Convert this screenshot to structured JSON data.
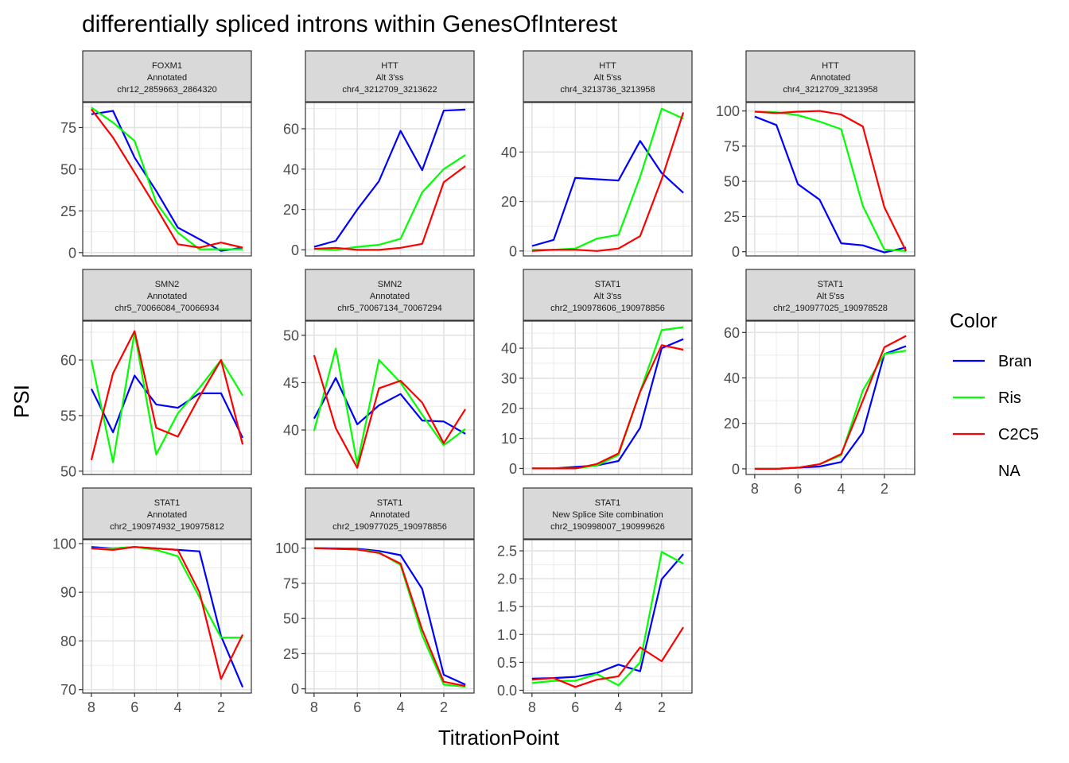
{
  "title": "differentially spliced introns within GenesOfInterest",
  "xlabel": "TitrationPoint",
  "ylabel": "PSI",
  "legend": {
    "title": "Color",
    "entries": [
      {
        "name": "Bran",
        "color": "#0000FF"
      },
      {
        "name": "Ris",
        "color": "#00FF00"
      },
      {
        "name": "C2C5",
        "color": "#FF0000"
      },
      {
        "name": "NA",
        "color": ""
      }
    ]
  },
  "chart_data": {
    "type": "line",
    "x_axis": {
      "range": [
        8.4,
        0.6
      ],
      "ticks": [
        8,
        6,
        4,
        2
      ],
      "tick_labels": [
        "8",
        "6",
        "4",
        "2"
      ],
      "reversed": true
    },
    "x": [
      8,
      7,
      6,
      5,
      4,
      3,
      2,
      1
    ],
    "panels": [
      {
        "strip": [
          "FOXM1",
          "Annotated",
          "chr12_2859663_2864320"
        ],
        "ylim": [
          -2,
          90
        ],
        "yticks": [
          0,
          25,
          50,
          75
        ],
        "ytick_labels": [
          "0",
          "25",
          "50",
          "75"
        ],
        "series": [
          {
            "name": "Bran",
            "values": [
              83,
              85,
              57,
              37,
              15,
              8,
              1,
              3
            ]
          },
          {
            "name": "Ris",
            "values": [
              87,
              78,
              67,
              30,
              12,
              2,
              2,
              2
            ]
          },
          {
            "name": "C2C5",
            "values": [
              86,
              69,
              48,
              27,
              5,
              3,
              6,
              3
            ]
          }
        ]
      },
      {
        "strip": [
          "HTT",
          "Alt 3'ss",
          "chr4_3212709_3213622"
        ],
        "ylim": [
          -3,
          73
        ],
        "yticks": [
          0,
          20,
          40,
          60
        ],
        "ytick_labels": [
          "0",
          "20",
          "40",
          "60"
        ],
        "series": [
          {
            "name": "Bran",
            "values": [
              1.5,
              4.5,
              20,
              34,
              59,
              39.5,
              69,
              69.5
            ]
          },
          {
            "name": "Ris",
            "values": [
              0.5,
              0,
              1.5,
              2.5,
              5.5,
              28.5,
              40,
              47
            ]
          },
          {
            "name": "C2C5",
            "values": [
              0.5,
              1,
              0,
              0,
              1,
              3,
              33.5,
              41.5
            ]
          }
        ]
      },
      {
        "strip": [
          "HTT",
          "Alt 5'ss",
          "chr4_3213736_3213958"
        ],
        "ylim": [
          -2,
          60
        ],
        "yticks": [
          0,
          20,
          40
        ],
        "ytick_labels": [
          "0",
          "20",
          "40"
        ],
        "series": [
          {
            "name": "Bran",
            "values": [
              2,
              4.5,
              29.5,
              29,
              28.5,
              44.5,
              31.5,
              23.5
            ]
          },
          {
            "name": "Ris",
            "values": [
              0.5,
              0.5,
              1,
              5,
              6.5,
              30,
              57.5,
              53.5
            ]
          },
          {
            "name": "C2C5",
            "values": [
              0,
              0.5,
              0.5,
              0,
              1,
              6,
              29,
              56
            ]
          }
        ]
      },
      {
        "strip": [
          "HTT",
          "Annotated",
          "chr4_3212709_3213958"
        ],
        "ylim": [
          -3,
          106
        ],
        "yticks": [
          0,
          25,
          50,
          75,
          100
        ],
        "ytick_labels": [
          "0",
          "25",
          "50",
          "75",
          "100"
        ],
        "series": [
          {
            "name": "Bran",
            "values": [
              96,
              90,
              48,
              37,
              6,
              4.5,
              -0.5,
              3
            ]
          },
          {
            "name": "Ris",
            "values": [
              99.5,
              99,
              97,
              92.5,
              87,
              32.5,
              1.5,
              0.5
            ]
          },
          {
            "name": "C2C5",
            "values": [
              99.5,
              98.5,
              99.5,
              100,
              97.5,
              89,
              31.5,
              0.5
            ]
          }
        ]
      },
      {
        "strip": [
          "SMN2",
          "Annotated",
          "chr5_70066084_70066934"
        ],
        "ylim": [
          49.7,
          63.5
        ],
        "yticks": [
          50,
          55,
          60
        ],
        "ytick_labels": [
          "50",
          "55",
          "60"
        ],
        "series": [
          {
            "name": "Bran",
            "values": [
              57.4,
              53.5,
              58.6,
              56.0,
              55.7,
              57.0,
              57.0,
              53.0
            ]
          },
          {
            "name": "Ris",
            "values": [
              60.0,
              50.8,
              62.5,
              51.5,
              55.2,
              57.5,
              60.0,
              56.8
            ]
          },
          {
            "name": "C2C5",
            "values": [
              51.0,
              58.8,
              62.6,
              53.9,
              53.1,
              56.7,
              60.0,
              52.4
            ]
          }
        ]
      },
      {
        "strip": [
          "SMN2",
          "Annotated",
          "chr5_70067134_70067294"
        ],
        "ylim": [
          35.3,
          51.5
        ],
        "yticks": [
          40,
          45,
          50
        ],
        "ytick_labels": [
          "40",
          "45",
          "50"
        ],
        "series": [
          {
            "name": "Bran",
            "values": [
              41.2,
              45.5,
              40.6,
              42.6,
              43.8,
              41.0,
              40.9,
              39.6
            ]
          },
          {
            "name": "Ris",
            "values": [
              39.9,
              48.6,
              36.4,
              47.4,
              45.0,
              41.6,
              38.4,
              40.1
            ]
          },
          {
            "name": "C2C5",
            "values": [
              47.9,
              40.2,
              36.0,
              44.4,
              45.2,
              42.9,
              38.6,
              42.2
            ]
          }
        ]
      },
      {
        "strip": [
          "STAT1",
          "Alt 3'ss",
          "chr2_190978606_190978856"
        ],
        "ylim": [
          -2,
          49
        ],
        "yticks": [
          0,
          10,
          20,
          30,
          40
        ],
        "ytick_labels": [
          "0",
          "10",
          "20",
          "30",
          "40"
        ],
        "series": [
          {
            "name": "Bran",
            "values": [
              0,
              0,
              0.5,
              1,
              2.5,
              13.5,
              40,
              43
            ]
          },
          {
            "name": "Ris",
            "values": [
              0,
              0,
              0,
              1,
              4.5,
              25.5,
              46,
              47
            ]
          },
          {
            "name": "C2C5",
            "values": [
              0,
              0,
              0,
              1.5,
              5,
              25.5,
              41,
              39.5
            ]
          }
        ]
      },
      {
        "strip": [
          "STAT1",
          "Alt 5'ss",
          "chr2_190977025_190978528"
        ],
        "ylim": [
          -2.5,
          65
        ],
        "yticks": [
          0,
          20,
          40,
          60
        ],
        "ytick_labels": [
          "0",
          "20",
          "40",
          "60"
        ],
        "series": [
          {
            "name": "Bran",
            "values": [
              0,
              0,
              0.5,
              1,
              3,
              16,
              50.5,
              54
            ]
          },
          {
            "name": "Ris",
            "values": [
              0,
              0,
              0.5,
              2,
              6,
              34.5,
              50.5,
              52
            ]
          },
          {
            "name": "C2C5",
            "values": [
              0,
              0,
              0.5,
              2,
              6.5,
              30,
              53.5,
              58.5
            ]
          }
        ]
      },
      {
        "strip": [
          "STAT1",
          "Annotated",
          "chr2_190974932_190975812"
        ],
        "ylim": [
          69.3,
          100.8
        ],
        "yticks": [
          70,
          80,
          90,
          100
        ],
        "ytick_labels": [
          "70",
          "80",
          "90",
          "100"
        ],
        "series": [
          {
            "name": "Bran",
            "values": [
              99.3,
              99.0,
              99.3,
              99.0,
              98.7,
              98.4,
              81.0,
              70.5
            ]
          },
          {
            "name": "Ris",
            "values": [
              99.0,
              99.0,
              99.3,
              98.7,
              97.4,
              89.0,
              80.7,
              80.7
            ]
          },
          {
            "name": "C2C5",
            "values": [
              99.0,
              98.7,
              99.3,
              99.0,
              98.7,
              90.0,
              72.2,
              81.3
            ]
          }
        ]
      },
      {
        "strip": [
          "STAT1",
          "Annotated",
          "chr2_190977025_190978856"
        ],
        "ylim": [
          -3,
          106
        ],
        "yticks": [
          0,
          25,
          50,
          75,
          100
        ],
        "ytick_labels": [
          "0",
          "25",
          "50",
          "75",
          "100"
        ],
        "series": [
          {
            "name": "Bran",
            "values": [
              100,
              99.8,
              99.5,
              98,
              95,
              71,
              10,
              3
            ]
          },
          {
            "name": "Ris",
            "values": [
              100,
              99.5,
              99,
              97,
              88,
              38,
              3,
              1.5
            ]
          },
          {
            "name": "C2C5",
            "values": [
              100,
              99.5,
              99,
              96.5,
              89,
              42,
              5,
              2
            ]
          }
        ]
      },
      {
        "strip": [
          "STAT1",
          "New Splice Site combination",
          "chr2_190998007_190999626"
        ],
        "ylim": [
          -0.05,
          2.7
        ],
        "yticks": [
          0,
          0.5,
          1,
          1.5,
          2,
          2.5
        ],
        "ytick_labels": [
          "0.0",
          "0.5",
          "1.0",
          "1.5",
          "2.0",
          "2.5"
        ],
        "series": [
          {
            "name": "Bran",
            "values": [
              0.21,
              0.22,
              0.24,
              0.31,
              0.46,
              0.34,
              1.99,
              2.44
            ]
          },
          {
            "name": "Ris",
            "values": [
              0.13,
              0.17,
              0.17,
              0.29,
              0.09,
              0.5,
              2.48,
              2.27
            ]
          },
          {
            "name": "C2C5",
            "values": [
              0.19,
              0.22,
              0.06,
              0.19,
              0.25,
              0.77,
              0.52,
              1.13
            ]
          }
        ]
      }
    ]
  }
}
